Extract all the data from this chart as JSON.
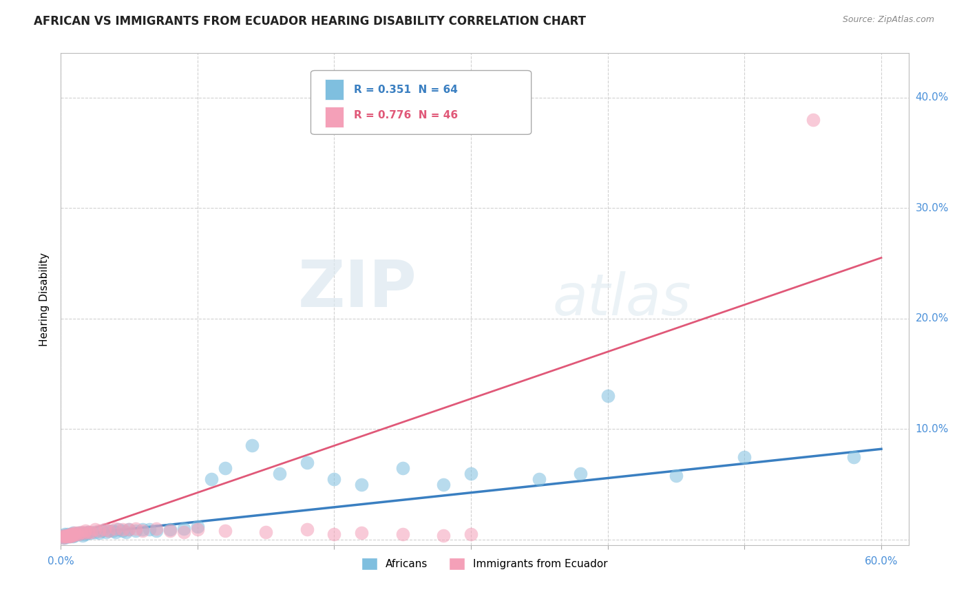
{
  "title": "AFRICAN VS IMMIGRANTS FROM ECUADOR HEARING DISABILITY CORRELATION CHART",
  "source": "Source: ZipAtlas.com",
  "ylabel": "Hearing Disability",
  "xlim": [
    0.0,
    0.62
  ],
  "ylim": [
    -0.005,
    0.44
  ],
  "xticks": [
    0.0,
    0.1,
    0.2,
    0.3,
    0.4,
    0.5,
    0.6
  ],
  "yticks": [
    0.0,
    0.1,
    0.2,
    0.3,
    0.4
  ],
  "xticklabels_left": "0.0%",
  "xticklabels_right": "60.0%",
  "yticklabels": [
    "",
    "10.0%",
    "20.0%",
    "30.0%",
    "40.0%"
  ],
  "africans_color": "#7fbfdf",
  "africans_line_color": "#3a7fc1",
  "ecuador_color": "#f4a0b8",
  "ecuador_line_color": "#e05878",
  "africans_x": [
    0.001,
    0.002,
    0.002,
    0.003,
    0.003,
    0.003,
    0.004,
    0.004,
    0.005,
    0.005,
    0.006,
    0.006,
    0.007,
    0.007,
    0.008,
    0.008,
    0.009,
    0.009,
    0.01,
    0.01,
    0.012,
    0.013,
    0.014,
    0.015,
    0.016,
    0.017,
    0.018,
    0.019,
    0.02,
    0.022,
    0.025,
    0.028,
    0.03,
    0.033,
    0.035,
    0.038,
    0.04,
    0.042,
    0.045,
    0.048,
    0.05,
    0.055,
    0.06,
    0.065,
    0.07,
    0.08,
    0.09,
    0.1,
    0.11,
    0.12,
    0.14,
    0.16,
    0.18,
    0.2,
    0.25,
    0.3,
    0.35,
    0.4,
    0.45,
    0.5,
    0.22,
    0.28,
    0.38,
    0.58
  ],
  "africans_y": [
    0.003,
    0.002,
    0.004,
    0.003,
    0.005,
    0.002,
    0.004,
    0.003,
    0.005,
    0.003,
    0.004,
    0.003,
    0.005,
    0.003,
    0.005,
    0.004,
    0.006,
    0.003,
    0.005,
    0.004,
    0.005,
    0.006,
    0.005,
    0.006,
    0.004,
    0.006,
    0.005,
    0.006,
    0.007,
    0.006,
    0.007,
    0.006,
    0.008,
    0.007,
    0.008,
    0.008,
    0.007,
    0.009,
    0.008,
    0.007,
    0.009,
    0.008,
    0.009,
    0.009,
    0.008,
    0.009,
    0.01,
    0.012,
    0.055,
    0.065,
    0.085,
    0.06,
    0.07,
    0.055,
    0.065,
    0.06,
    0.055,
    0.13,
    0.058,
    0.075,
    0.05,
    0.05,
    0.06,
    0.075
  ],
  "ecuador_x": [
    0.001,
    0.002,
    0.003,
    0.003,
    0.004,
    0.005,
    0.005,
    0.006,
    0.006,
    0.007,
    0.007,
    0.008,
    0.008,
    0.009,
    0.009,
    0.01,
    0.011,
    0.012,
    0.013,
    0.015,
    0.017,
    0.018,
    0.02,
    0.022,
    0.025,
    0.028,
    0.032,
    0.035,
    0.04,
    0.045,
    0.05,
    0.055,
    0.06,
    0.07,
    0.08,
    0.09,
    0.1,
    0.12,
    0.15,
    0.18,
    0.2,
    0.22,
    0.25,
    0.28,
    0.3,
    0.55
  ],
  "ecuador_y": [
    0.003,
    0.002,
    0.003,
    0.004,
    0.003,
    0.004,
    0.003,
    0.004,
    0.003,
    0.005,
    0.003,
    0.005,
    0.004,
    0.005,
    0.004,
    0.006,
    0.005,
    0.006,
    0.005,
    0.007,
    0.006,
    0.008,
    0.007,
    0.007,
    0.009,
    0.008,
    0.009,
    0.008,
    0.01,
    0.009,
    0.009,
    0.01,
    0.008,
    0.01,
    0.008,
    0.007,
    0.009,
    0.008,
    0.007,
    0.009,
    0.005,
    0.006,
    0.005,
    0.004,
    0.005,
    0.38
  ],
  "blue_line_x0": 0.0,
  "blue_line_y0": 0.003,
  "blue_line_x1": 0.6,
  "blue_line_y1": 0.082,
  "pink_line_x0": 0.0,
  "pink_line_y0": 0.0,
  "pink_line_x1": 0.6,
  "pink_line_y1": 0.255,
  "watermark_zip": "ZIP",
  "watermark_atlas": "atlas",
  "background_color": "#ffffff",
  "grid_color": "#cccccc",
  "title_fontsize": 12,
  "tick_color": "#4a90d9",
  "legend_R1": "R = 0.351",
  "legend_N1": "N = 64",
  "legend_R2": "R = 0.776",
  "legend_N2": "N = 46"
}
